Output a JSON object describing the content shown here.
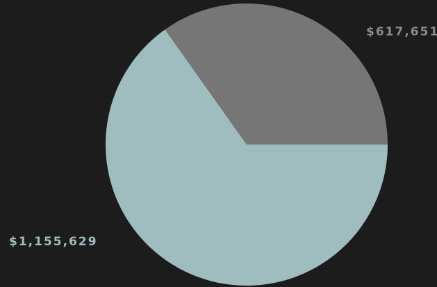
{
  "background": "#1c1c1c",
  "chart_data": {
    "type": "pie",
    "title": "",
    "legend": "none",
    "slices": [
      {
        "value": 617651,
        "label": "$617,651",
        "color": "#767676"
      },
      {
        "value": 1155629,
        "label": "$1,155,629",
        "color": "#9fbcbf"
      }
    ],
    "label_colors": [
      "#8a8a8a",
      "#9fbcbf"
    ]
  }
}
